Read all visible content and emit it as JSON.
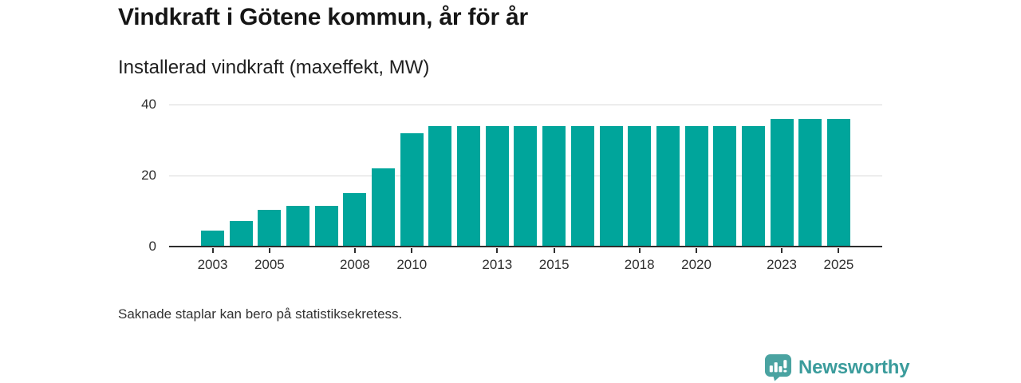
{
  "title": "Vindkraft i Götene kommun, år för år",
  "subtitle": "Installerad vindkraft (maxeffekt, MW)",
  "footnote": "Saknade staplar kan bero på statistiksekretess.",
  "brand": {
    "name": "Newsworthy",
    "icon": "bar-chart-speech-bubble-icon"
  },
  "colors": {
    "bar": "#00a59b",
    "grid": "#d8d8d8",
    "axis": "#2d2d2d",
    "logo_bubble": "#4aa3a1",
    "logo_glyph": "#ffffff",
    "logo_text": "#3b9c9c"
  },
  "chart_data": {
    "type": "bar",
    "title": "Vindkraft i Götene kommun, år för år",
    "ylabel": "Installerad vindkraft (maxeffekt, MW)",
    "xlabel": "",
    "unit": "MW",
    "grid": "horizontal",
    "legend": "none",
    "ylim": [
      0,
      40
    ],
    "yticks": [
      0,
      20,
      40
    ],
    "xticks": [
      2003,
      2005,
      2008,
      2010,
      2013,
      2015,
      2018,
      2020,
      2023,
      2025
    ],
    "x": [
      2003,
      2004,
      2005,
      2006,
      2007,
      2008,
      2009,
      2010,
      2011,
      2012,
      2013,
      2014,
      2015,
      2016,
      2017,
      2018,
      2019,
      2020,
      2021,
      2022,
      2023,
      2024,
      2025
    ],
    "values": [
      4.5,
      7.1,
      10.4,
      11.5,
      11.5,
      15.0,
      22.0,
      32.0,
      34.0,
      34.0,
      34.0,
      34.0,
      34.0,
      34.0,
      34.0,
      34.0,
      34.0,
      34.0,
      34.0,
      34.0,
      35.9,
      35.9,
      35.9
    ]
  }
}
